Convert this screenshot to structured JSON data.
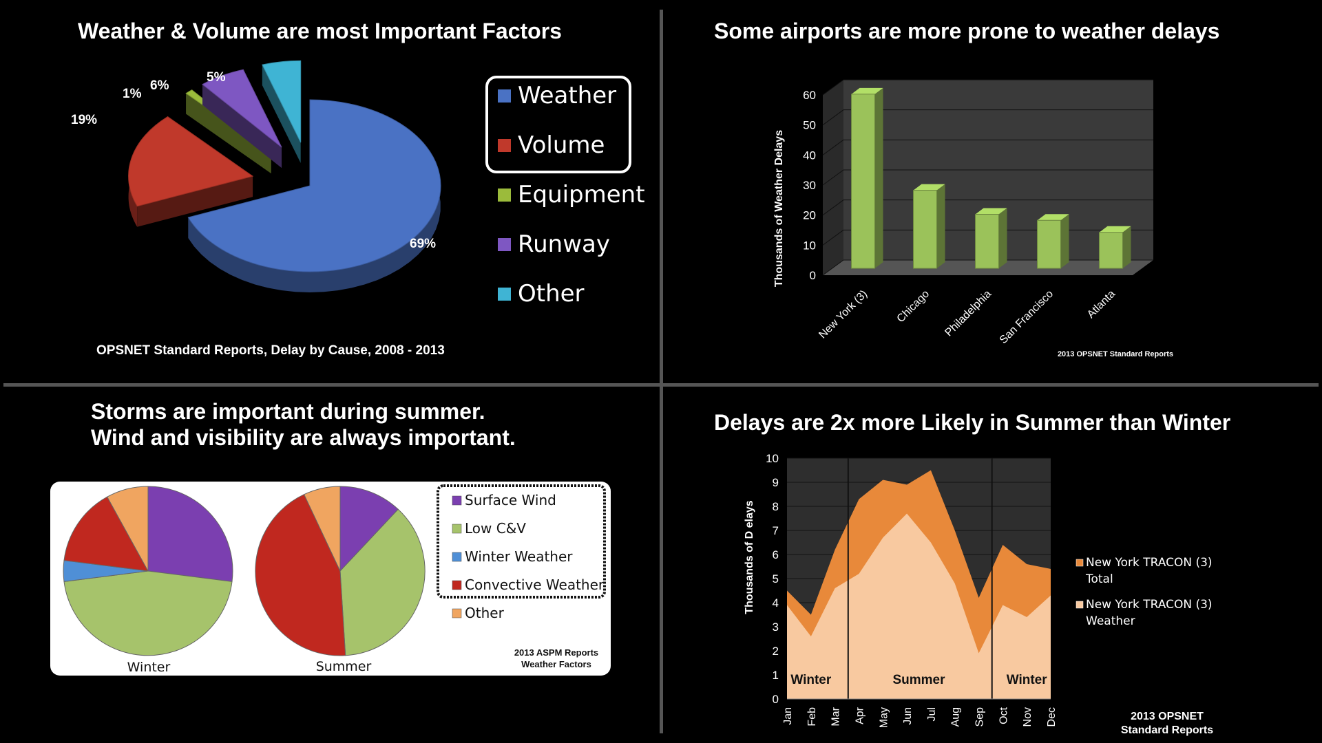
{
  "titles": {
    "q1": "Weather & Volume are most Important Factors",
    "q2": "Some airports are more prone to weather delays",
    "q3_line1": "Storms are important during summer.",
    "q3_line2": "Wind and visibility are always important.",
    "q4": "Delays are 2x more Likely in Summer than Winter"
  },
  "chart_data": [
    {
      "type": "pie",
      "title": "Weather & Volume are most Important Factors",
      "source": "OPSNET Standard Reports, Delay by Cause, 2008 - 2013",
      "slices": [
        {
          "label": "Weather",
          "value": 69,
          "display": "69%",
          "color": "#4a72c4"
        },
        {
          "label": "Volume",
          "value": 19,
          "display": "19%",
          "color": "#c0392b"
        },
        {
          "label": "Equipment",
          "value": 1,
          "display": "1%",
          "color": "#9bbb3b"
        },
        {
          "label": "Runway",
          "value": 6,
          "display": "6%",
          "color": "#7e57c2"
        },
        {
          "label": "Other",
          "value": 5,
          "display": "5%",
          "color": "#3fb4d4"
        }
      ],
      "highlighted": [
        "Weather",
        "Volume"
      ]
    },
    {
      "type": "bar",
      "title": "Some airports are more prone to weather delays",
      "ylabel": "Thousands of Weather Delays",
      "categories": [
        "New York (3)",
        "Chicago",
        "Philadelphia",
        "San Francisco",
        "Atlanta"
      ],
      "values": [
        58,
        26,
        18,
        16,
        12
      ],
      "ylim": [
        0,
        60
      ],
      "yticks": [
        "0",
        "10",
        "20",
        "30",
        "40",
        "50",
        "60"
      ],
      "color": "#9bc25a",
      "source": "2013 OPSNET Standard Reports"
    },
    {
      "type": "pie",
      "title": "Winter",
      "slices": [
        {
          "label": "Surface Wind",
          "value": 27
        },
        {
          "label": "Low C&V",
          "value": 46
        },
        {
          "label": "Winter Weather",
          "value": 4
        },
        {
          "label": "Convective Weather",
          "value": 15
        },
        {
          "label": "Other",
          "value": 8
        }
      ]
    },
    {
      "type": "pie",
      "title": "Summer",
      "slices": [
        {
          "label": "Surface Wind",
          "value": 12
        },
        {
          "label": "Low C&V",
          "value": 37
        },
        {
          "label": "Winter Weather",
          "value": 0
        },
        {
          "label": "Convective Weather",
          "value": 44
        },
        {
          "label": "Other",
          "value": 7
        }
      ]
    },
    {
      "type": "area",
      "title": "Delays are 2x more Likely in Summer than Winter",
      "ylabel": "Thousands of D elays",
      "x": [
        "Jan",
        "Feb",
        "Mar",
        "Apr",
        "May",
        "Jun",
        "Jul",
        "Aug",
        "Sep",
        "Oct",
        "Nov",
        "Dec"
      ],
      "ylim": [
        0,
        10
      ],
      "yticks": [
        "0",
        "1",
        "2",
        "3",
        "4",
        "5",
        "6",
        "7",
        "8",
        "9",
        "10"
      ],
      "series": [
        {
          "name": "New York TRACON (3) Total",
          "values": [
            4.5,
            3.5,
            6.2,
            8.3,
            9.1,
            8.9,
            9.5,
            7.0,
            4.2,
            6.4,
            5.6,
            5.4
          ],
          "color": "#e8893a"
        },
        {
          "name": "New York TRACON (3) Weather",
          "values": [
            3.9,
            2.6,
            4.6,
            5.2,
            6.7,
            7.7,
            6.5,
            4.8,
            1.9,
            3.9,
            3.4,
            4.3
          ],
          "color": "#f8c9a0"
        }
      ],
      "season_labels": [
        {
          "label": "Winter",
          "from": "Jan",
          "to": "Mar"
        },
        {
          "label": "Summer",
          "from": "Apr",
          "to": "Sep"
        },
        {
          "label": "Winter",
          "from": "Oct",
          "to": "Dec"
        }
      ],
      "source_line1": "2013 OPSNET",
      "source_line2": "Standard Reports"
    }
  ],
  "season_legend": {
    "items": [
      {
        "label": "Surface Wind",
        "color": "#7b3fb0"
      },
      {
        "label": "Low C&V",
        "color": "#a6c36b"
      },
      {
        "label": "Winter Weather",
        "color": "#4f8fd6"
      },
      {
        "label": "Convective Weather",
        "color": "#c0281f"
      },
      {
        "label": "Other",
        "color": "#f0a560"
      }
    ],
    "source_line1": "2013 ASPM Reports",
    "source_line2": "Weather Factors"
  }
}
